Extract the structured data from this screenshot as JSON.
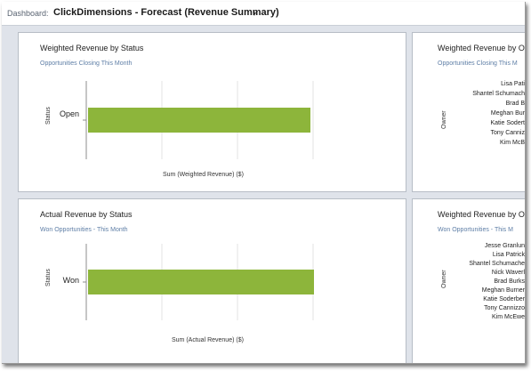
{
  "header": {
    "label": "Dashboard:",
    "title": "ClickDimensions - Forecast (Revenue Summary)",
    "caret": "▾"
  },
  "panels": {
    "weighted_status": {
      "title": "Weighted Revenue by Status",
      "subtitle": "Opportunities Closing This Month",
      "chart_data": {
        "type": "bar",
        "orientation": "horizontal",
        "categories": [
          "Open"
        ],
        "values": [
          1
        ],
        "ylabel": "Status",
        "xlabel": "Sum (Weighted Revenue) ($)",
        "color": "#8db53b",
        "grid": true
      }
    },
    "actual_status": {
      "title": "Actual Revenue by Status",
      "subtitle": "Won Opportunities - This Month",
      "chart_data": {
        "type": "bar",
        "orientation": "horizontal",
        "categories": [
          "Won"
        ],
        "values": [
          1
        ],
        "ylabel": "Status",
        "xlabel": "Sum (Actual Revenue) ($)",
        "color": "#8db53b",
        "grid": true
      }
    },
    "weighted_owner_top": {
      "title": "Weighted Revenue by Ow",
      "subtitle": "Opportunities Closing This M",
      "ylabel": "Owner",
      "owners": [
        "Lisa Pati",
        "Shantel Schumach",
        "Brad B",
        "Meghan Bur",
        "Katie Sodert",
        "Tony Canniz",
        "Kim McB"
      ]
    },
    "weighted_owner_bottom": {
      "title": "Weighted Revenue by O",
      "subtitle": "Won Opportunities - This M",
      "ylabel": "Owner",
      "owners": [
        "Jesse Granlun",
        "Lisa Patrick",
        "Shantel Schumache",
        "Nick Waverl",
        "Brad Burks",
        "Meghan Burner",
        "Katie Soderber",
        "Tony Cannizzo",
        "Kim McEwe"
      ]
    }
  }
}
